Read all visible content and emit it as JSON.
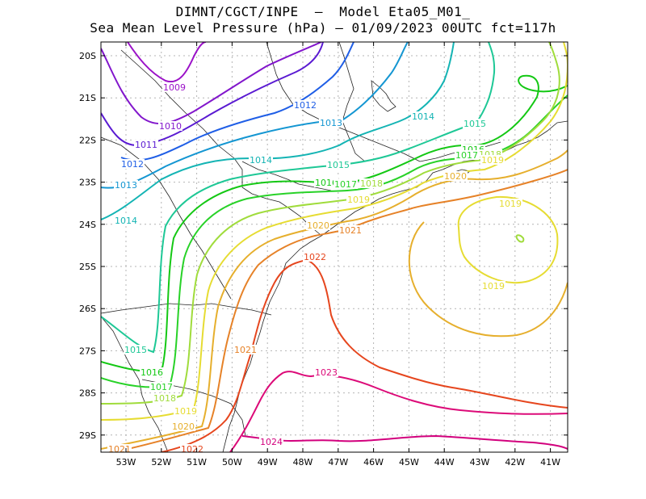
{
  "title_line1": "DIMNT/CGCT/INPE  –  Model Eta05_M01_",
  "title_line2": "Sea Mean Level Pressure (hPa) – 01/09/2023 00UTC fct=117h",
  "lat_ticks": [
    "20S",
    "21S",
    "22S",
    "23S",
    "24S",
    "25S",
    "26S",
    "27S",
    "28S",
    "29S"
  ],
  "lon_ticks": [
    "53W",
    "52W",
    "51W",
    "50W",
    "49W",
    "48W",
    "47W",
    "46W",
    "45W",
    "44W",
    "43W",
    "42W",
    "41W"
  ],
  "contour_levels": [
    {
      "level": 1009,
      "color": "#9b12c8"
    },
    {
      "level": 1010,
      "color": "#8216cc"
    },
    {
      "level": 1011,
      "color": "#5a1ad2"
    },
    {
      "level": 1012,
      "color": "#1f5ee6"
    },
    {
      "level": 1013,
      "color": "#1496d2"
    },
    {
      "level": 1014,
      "color": "#14b4b4"
    },
    {
      "level": 1015,
      "color": "#1ec896"
    },
    {
      "level": 1016,
      "color": "#14c814"
    },
    {
      "level": 1017,
      "color": "#28d228"
    },
    {
      "level": 1018,
      "color": "#a0dc3c"
    },
    {
      "level": 1019,
      "color": "#e6dc32"
    },
    {
      "level": 1020,
      "color": "#e6af2d"
    },
    {
      "level": 1021,
      "color": "#e68228"
    },
    {
      "level": 1022,
      "color": "#e6461e"
    },
    {
      "level": 1023,
      "color": "#dc0a78"
    },
    {
      "level": 1024,
      "color": "#d2007d"
    }
  ],
  "contour_labels": [
    {
      "text": "1009",
      "color": "#9b12c8"
    },
    {
      "text": "1010",
      "color": "#8216cc"
    },
    {
      "text": "1011",
      "color": "#5a1ad2"
    },
    {
      "text": "1012",
      "color": "#1f5ee6"
    },
    {
      "text": "1012",
      "color": "#1f5ee6"
    },
    {
      "text": "1013",
      "color": "#1496d2"
    },
    {
      "text": "1013",
      "color": "#1496d2"
    },
    {
      "text": "1014",
      "color": "#14b4b4"
    },
    {
      "text": "1014",
      "color": "#14b4b4"
    },
    {
      "text": "1014",
      "color": "#14b4b4"
    },
    {
      "text": "1015",
      "color": "#1ec896"
    },
    {
      "text": "1015",
      "color": "#1ec896"
    },
    {
      "text": "1015",
      "color": "#1ec896"
    },
    {
      "text": "1016",
      "color": "#14c814"
    },
    {
      "text": "1016",
      "color": "#14c814"
    },
    {
      "text": "1016",
      "color": "#14c814"
    },
    {
      "text": "1017",
      "color": "#28d228"
    },
    {
      "text": "1017",
      "color": "#28d228"
    },
    {
      "text": "1017",
      "color": "#28d228"
    },
    {
      "text": "1018",
      "color": "#a0dc3c"
    },
    {
      "text": "1018",
      "color": "#a0dc3c"
    },
    {
      "text": "1018",
      "color": "#a0dc3c"
    },
    {
      "text": "1019",
      "color": "#e6dc32"
    },
    {
      "text": "1019",
      "color": "#e6dc32"
    },
    {
      "text": "1019",
      "color": "#e6dc32"
    },
    {
      "text": "1019",
      "color": "#e6dc32"
    },
    {
      "text": "1019",
      "color": "#e6dc32"
    },
    {
      "text": "1020",
      "color": "#e6af2d"
    },
    {
      "text": "1020",
      "color": "#e6af2d"
    },
    {
      "text": "1020",
      "color": "#e6af2d"
    },
    {
      "text": "1021",
      "color": "#e68228"
    },
    {
      "text": "1021",
      "color": "#e68228"
    },
    {
      "text": "1021",
      "color": "#e68228"
    },
    {
      "text": "1022",
      "color": "#e6461e"
    },
    {
      "text": "1022",
      "color": "#e6461e"
    },
    {
      "text": "1023",
      "color": "#dc0a78"
    },
    {
      "text": "1024",
      "color": "#d2007d"
    }
  ]
}
